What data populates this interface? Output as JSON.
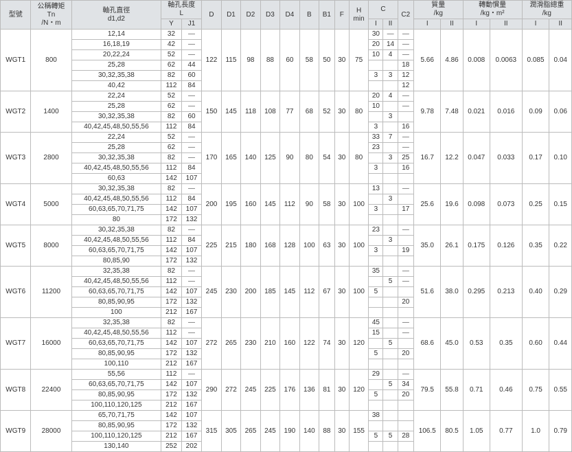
{
  "headers": {
    "c1": "型號",
    "c2": "公稱轉矩\nTn\n/N・m",
    "c3": "軸孔直徑\nd1,d2",
    "c4": "軸孔長度\nL",
    "c4a": "Y",
    "c4b": "J1",
    "c5": "D",
    "c6": "D1",
    "c7": "D2",
    "c8": "D3",
    "c9": "D4",
    "c10": "B",
    "c11": "B1",
    "c12": "F",
    "c13": "H\nmin",
    "c14": "C",
    "c14a": "I",
    "c14b": "II",
    "c15": "C2",
    "c16": "質量\n/kg",
    "c16a": "I",
    "c16b": "II",
    "c17": "轉動慣量\n/kg・m²",
    "c17a": "I",
    "c17b": "II",
    "c18": "潤滑脂總重\n/kg",
    "c18a": "I",
    "c18b": "II"
  },
  "rows": [
    {
      "m": "WGT1",
      "t": "800",
      "d": [
        "12,14",
        "16,18,19",
        "20,22,24",
        "25,28",
        "30,32,35,38",
        "40,42"
      ],
      "y": [
        "32",
        "42",
        "52",
        "62",
        "82",
        "112"
      ],
      "j": [
        "—",
        "—",
        "—",
        "44",
        "60",
        "84"
      ],
      "D": "122",
      "D1": "115",
      "D2": "98",
      "D3": "88",
      "D4": "60",
      "B": "58",
      "B1": "50",
      "F": "30",
      "H": "75",
      "cI": [
        "30",
        "20",
        "10",
        "",
        "3",
        ""
      ],
      "cII": [
        "—",
        "14",
        "4",
        "",
        "3",
        ""
      ],
      "c2": [
        "—",
        "—",
        "—",
        "18",
        "12",
        "12"
      ],
      "mI": "5.66",
      "mII": "4.86",
      "iI": "0.008",
      "iII": "0.0063",
      "gI": "0.085",
      "gII": "0.04"
    },
    {
      "m": "WGT2",
      "t": "1400",
      "d": [
        "22,24",
        "25,28",
        "30,32,35,38",
        "40,42,45,48,50,55,56"
      ],
      "y": [
        "52",
        "62",
        "82",
        "112"
      ],
      "j": [
        "—",
        "—",
        "60",
        "84"
      ],
      "D": "150",
      "D1": "145",
      "D2": "118",
      "D3": "108",
      "D4": "77",
      "B": "68",
      "B1": "52",
      "F": "30",
      "H": "80",
      "cI": [
        "20",
        "10",
        "",
        "3"
      ],
      "cII": [
        "4",
        "",
        "3",
        ""
      ],
      "c2": [
        "—",
        "—",
        "",
        "16"
      ],
      "mI": "9.78",
      "mII": "7.48",
      "iI": "0.021",
      "iII": "0.016",
      "gI": "0.09",
      "gII": "0.06"
    },
    {
      "m": "WGT3",
      "t": "2800",
      "d": [
        "22,24",
        "25,28",
        "30,32,35,38",
        "40,42,45,48,50,55,56",
        "60,63"
      ],
      "y": [
        "52",
        "62",
        "82",
        "112",
        "142"
      ],
      "j": [
        "—",
        "—",
        "—",
        "84",
        "107"
      ],
      "D": "170",
      "D1": "165",
      "D2": "140",
      "D3": "125",
      "D4": "90",
      "B": "80",
      "B1": "54",
      "F": "30",
      "H": "80",
      "cI": [
        "33",
        "23",
        "",
        "3",
        ""
      ],
      "cII": [
        "7",
        "",
        "3",
        "",
        ""
      ],
      "c2": [
        "—",
        "—",
        "25",
        "16",
        ""
      ],
      "mI": "16.7",
      "mII": "12.2",
      "iI": "0.047",
      "iII": "0.033",
      "gI": "0.17",
      "gII": "0.10"
    },
    {
      "m": "WGT4",
      "t": "5000",
      "d": [
        "30,32,35,38",
        "40,42,45,48,50,55,56",
        "60,63,65,70,71,75",
        "80"
      ],
      "y": [
        "82",
        "112",
        "142",
        "172"
      ],
      "j": [
        "—",
        "84",
        "107",
        "132"
      ],
      "D": "200",
      "D1": "195",
      "D2": "160",
      "D3": "145",
      "D4": "112",
      "B": "90",
      "B1": "58",
      "F": "30",
      "H": "100",
      "cI": [
        "13",
        "",
        "3",
        ""
      ],
      "cII": [
        "",
        "3",
        "",
        ""
      ],
      "c2": [
        "—",
        "",
        "17",
        ""
      ],
      "mI": "25.6",
      "mII": "19.6",
      "iI": "0.098",
      "iII": "0.073",
      "gI": "0.25",
      "gII": "0.15"
    },
    {
      "m": "WGT5",
      "t": "8000",
      "d": [
        "30,32,35,38",
        "40,42,45,48,50,55,56",
        "60,63,65,70,71,75",
        "80,85,90"
      ],
      "y": [
        "82",
        "112",
        "142",
        "172"
      ],
      "j": [
        "—",
        "84",
        "107",
        "132"
      ],
      "D": "225",
      "D1": "215",
      "D2": "180",
      "D3": "168",
      "D4": "128",
      "B": "100",
      "B1": "63",
      "F": "30",
      "H": "100",
      "cI": [
        "23",
        "",
        "3",
        ""
      ],
      "cII": [
        "",
        "3",
        "",
        ""
      ],
      "c2": [
        "—",
        "",
        "19",
        ""
      ],
      "mI": "35.0",
      "mII": "26.1",
      "iI": "0.175",
      "iII": "0.126",
      "gI": "0.35",
      "gII": "0.22"
    },
    {
      "m": "WGT6",
      "t": "11200",
      "d": [
        "32,35,38",
        "40,42,45,48,50,55,56",
        "60,63,65,70,71,75",
        "80,85,90,95",
        "100"
      ],
      "y": [
        "82",
        "112",
        "142",
        "172",
        "212"
      ],
      "j": [
        "—",
        "—",
        "107",
        "132",
        "167"
      ],
      "D": "245",
      "D1": "230",
      "D2": "200",
      "D3": "185",
      "D4": "145",
      "B": "112",
      "B1": "67",
      "F": "30",
      "H": "100",
      "cI": [
        "35",
        "",
        "5",
        "",
        ""
      ],
      "cII": [
        "",
        "5",
        "",
        "",
        ""
      ],
      "c2": [
        "—",
        "—",
        "",
        "20",
        ""
      ],
      "mI": "51.6",
      "mII": "38.0",
      "iI": "0.295",
      "iII": "0.213",
      "gI": "0.40",
      "gII": "0.29"
    },
    {
      "m": "WGT7",
      "t": "16000",
      "d": [
        "32,35,38",
        "40,42,45,48,50,55,56",
        "60,63,65,70,71,75",
        "80,85,90,95",
        "100,110"
      ],
      "y": [
        "82",
        "112",
        "142",
        "172",
        "212"
      ],
      "j": [
        "—",
        "—",
        "107",
        "132",
        "167"
      ],
      "D": "272",
      "D1": "265",
      "D2": "230",
      "D3": "210",
      "D4": "160",
      "B": "122",
      "B1": "74",
      "F": "30",
      "H": "120",
      "cI": [
        "45",
        "15",
        "",
        "5",
        ""
      ],
      "cII": [
        "",
        "",
        "5",
        "",
        ""
      ],
      "c2": [
        "—",
        "—",
        "",
        "20",
        ""
      ],
      "mI": "68.6",
      "mII": "45.0",
      "iI": "0.53",
      "iII": "0.35",
      "gI": "0.60",
      "gII": "0.44"
    },
    {
      "m": "WGT8",
      "t": "22400",
      "d": [
        "55,56",
        "60,63,65,70,71,75",
        "80,85,90,95",
        "100,110,120,125"
      ],
      "y": [
        "112",
        "142",
        "172",
        "212"
      ],
      "j": [
        "—",
        "107",
        "132",
        "167"
      ],
      "D": "290",
      "D1": "272",
      "D2": "245",
      "D3": "225",
      "D4": "176",
      "B": "136",
      "B1": "81",
      "F": "30",
      "H": "120",
      "cI": [
        "29",
        "",
        "5",
        ""
      ],
      "cII": [
        "",
        "5",
        "",
        ""
      ],
      "c2": [
        "—",
        "34",
        "20",
        ""
      ],
      "mI": "79.5",
      "mII": "55.8",
      "iI": "0.71",
      "iII": "0.46",
      "gI": "0.75",
      "gII": "0.55"
    },
    {
      "m": "WGT9",
      "t": "28000",
      "d": [
        "65,70,71,75",
        "80,85,90,95",
        "100,110,120,125",
        "130,140"
      ],
      "y": [
        "142",
        "172",
        "212",
        "252"
      ],
      "j": [
        "107",
        "132",
        "167",
        "202"
      ],
      "D": "315",
      "D1": "305",
      "D2": "265",
      "D3": "245",
      "D4": "190",
      "B": "140",
      "B1": "88",
      "F": "30",
      "H": "155",
      "cI": [
        "38",
        "",
        "5",
        ""
      ],
      "cII": [
        "",
        "",
        "5",
        ""
      ],
      "c2": [
        "",
        "",
        "28",
        ""
      ],
      "mI": "106.5",
      "mII": "80.5",
      "iI": "1.05",
      "iII": "0.77",
      "gI": "1.0",
      "gII": "0.79"
    }
  ]
}
